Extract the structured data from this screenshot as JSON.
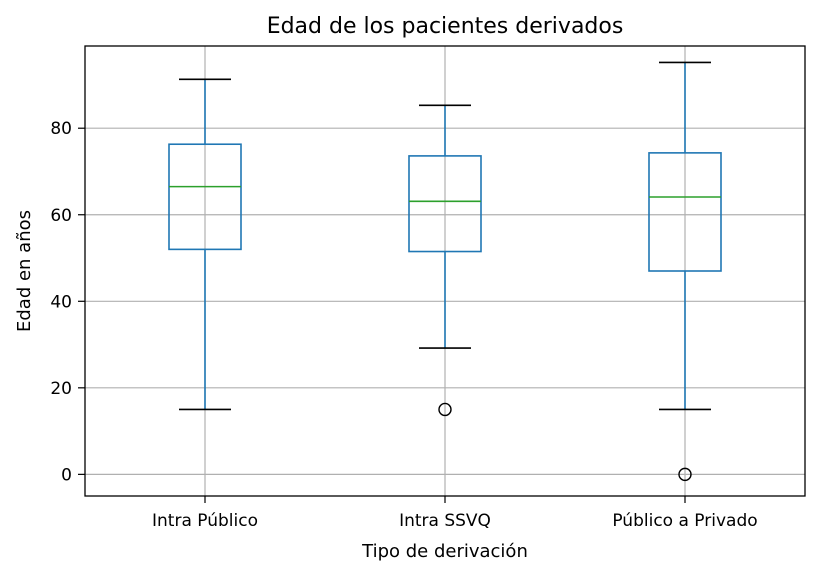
{
  "chart_data": {
    "type": "box",
    "title": "Edad de los pacientes derivados",
    "xlabel": "Tipo de derivación",
    "ylabel": "Edad en años",
    "ylim": [
      -5,
      99
    ],
    "yticks": [
      0,
      20,
      40,
      60,
      80
    ],
    "grid": true,
    "legend": "none",
    "colors": {
      "box": "#1f77b4",
      "median": "#2ca02c",
      "whisker_cap": "#000000",
      "grid": "#b0b0b0"
    },
    "categories": [
      "Intra Público",
      "Intra SSVQ",
      "Público a Privado"
    ],
    "boxes": [
      {
        "category": "Intra Público",
        "whisker_low": 15,
        "q1": 52,
        "median": 66.5,
        "q3": 76.3,
        "whisker_high": 91.3,
        "outliers": []
      },
      {
        "category": "Intra SSVQ",
        "whisker_low": 29.2,
        "q1": 51.5,
        "median": 63.1,
        "q3": 73.6,
        "whisker_high": 85.3,
        "outliers": [
          15
        ]
      },
      {
        "category": "Público a Privado",
        "whisker_low": 15,
        "q1": 47,
        "median": 64.1,
        "q3": 74.3,
        "whisker_high": 95.2,
        "outliers": [
          0
        ]
      }
    ]
  }
}
